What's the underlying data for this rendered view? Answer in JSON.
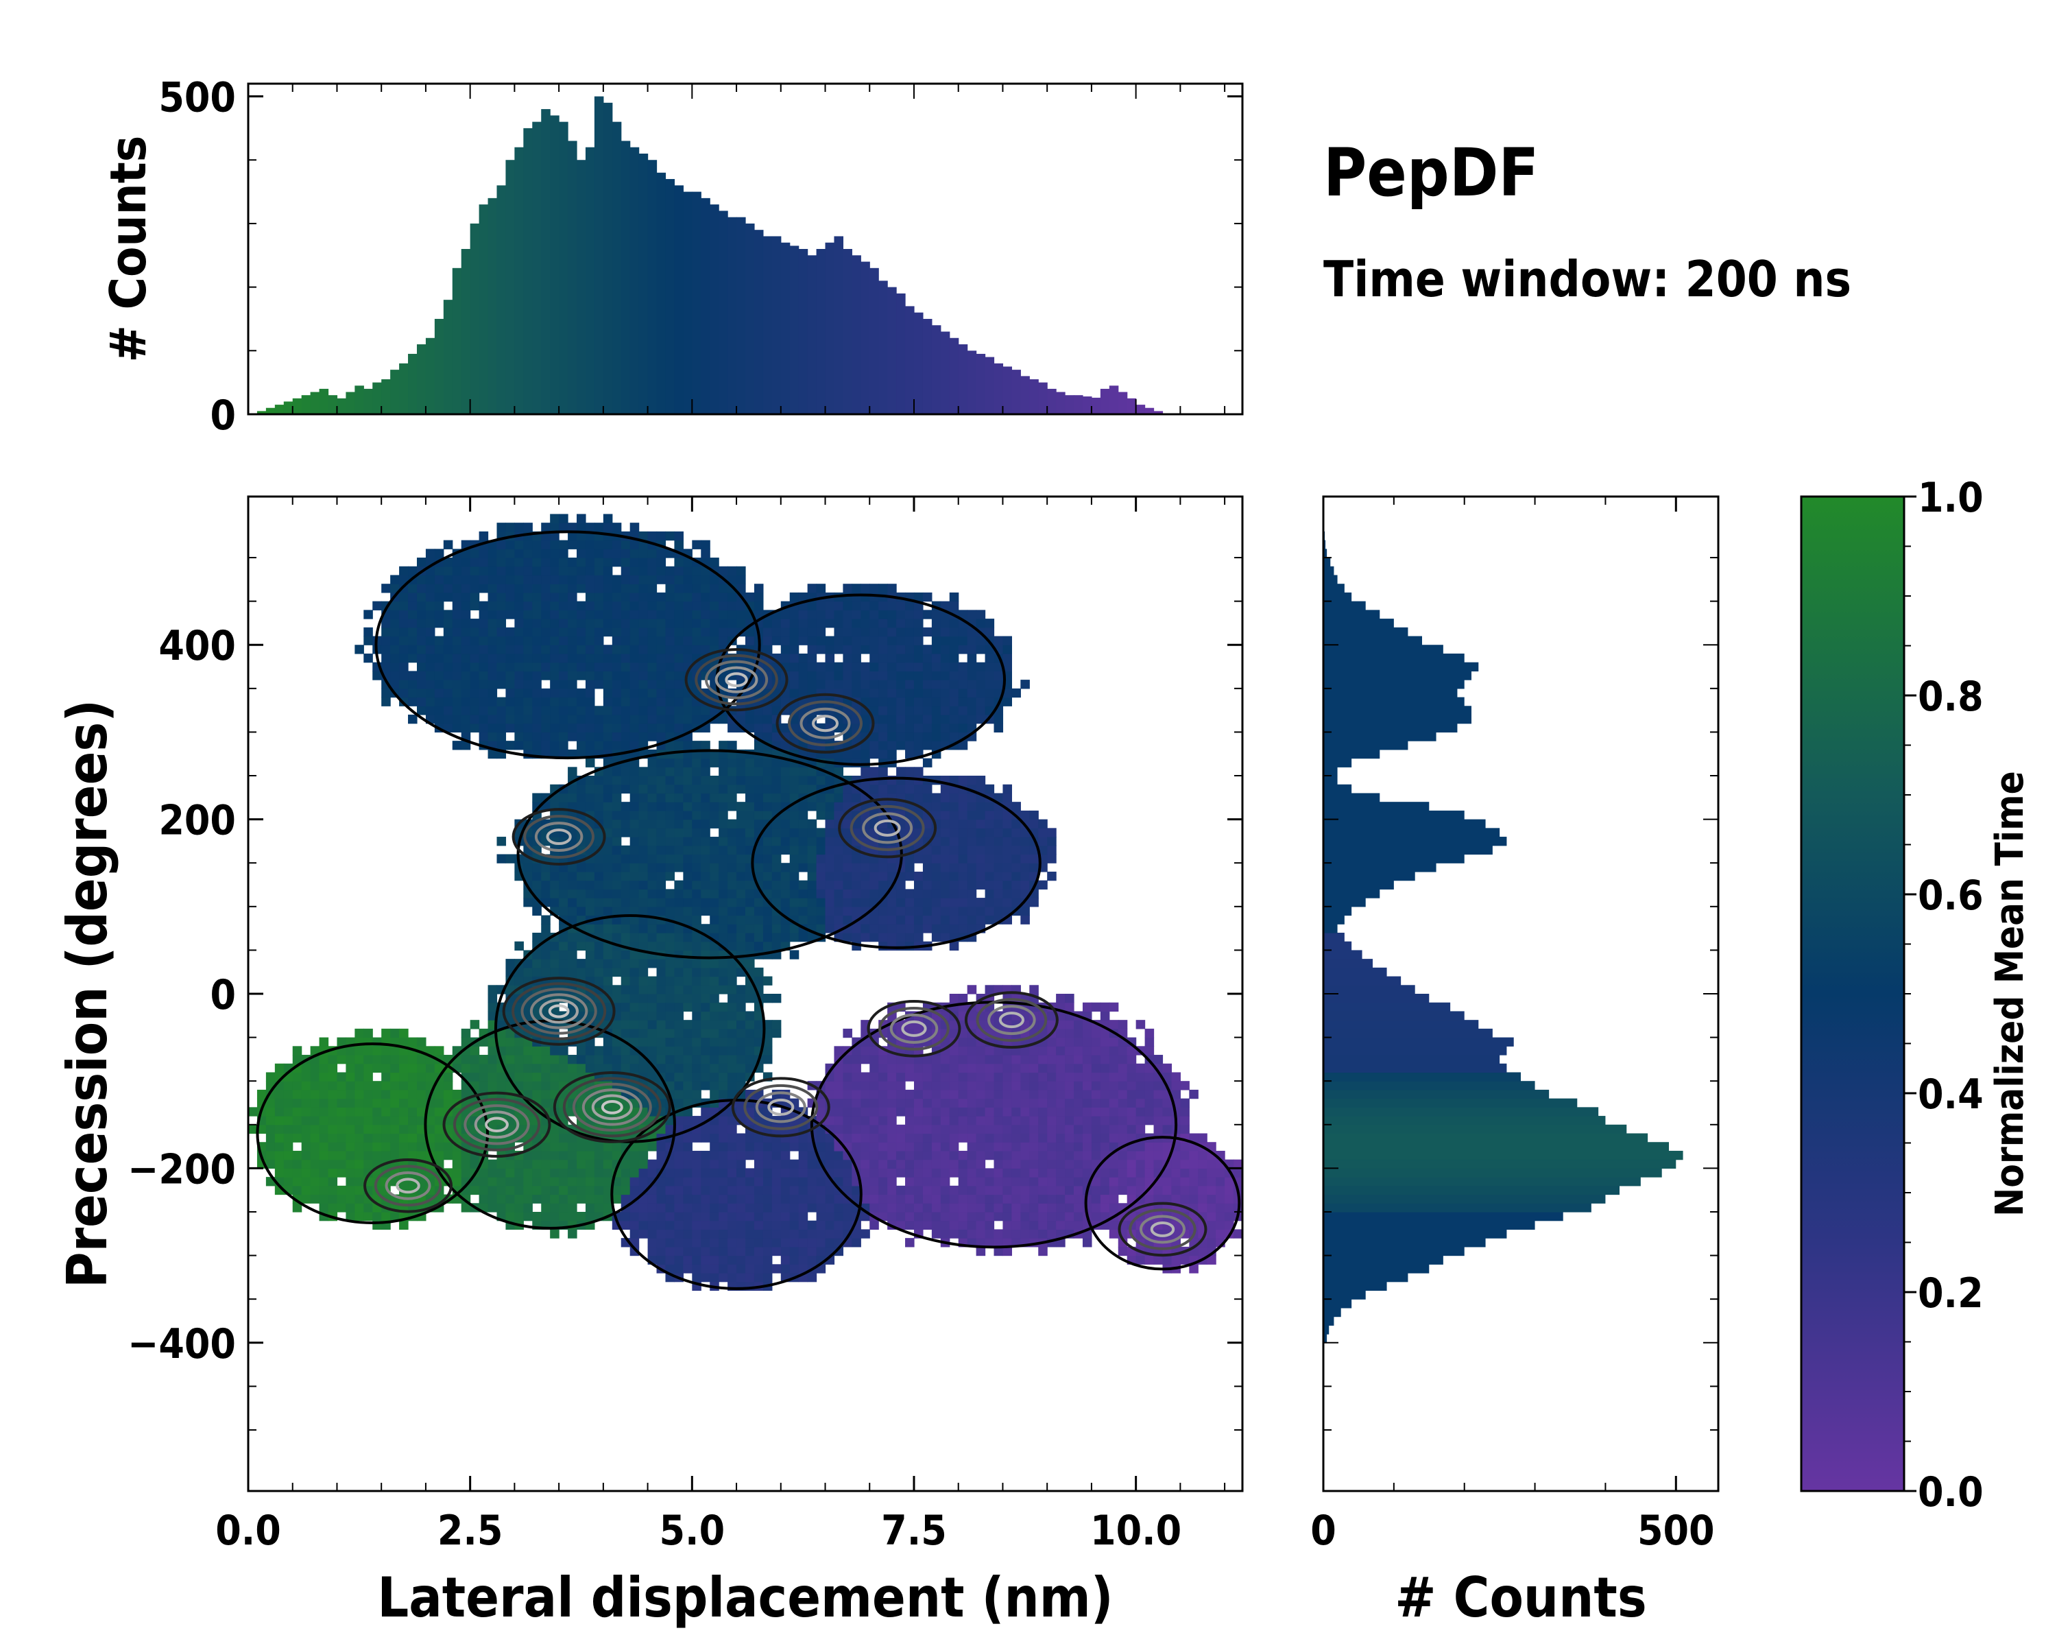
{
  "title": "PepDF",
  "subtitle": "Time window: 200 ns",
  "colors": {
    "green": "#228a2a",
    "teal": "#1a5a5e",
    "navy": "#063a6a",
    "indigo": "#2e3585",
    "purple": "#6635a2"
  },
  "chart_data": [
    {
      "type": "bar",
      "name": "x-marginal-histogram",
      "ylabel": "# Counts",
      "xlim": [
        0,
        11.2
      ],
      "ylim": [
        0,
        520
      ],
      "yticks": [
        0,
        500
      ],
      "ytick_labels": [
        "0",
        "500"
      ],
      "bin_edges_start": 0.0,
      "bin_width": 0.1,
      "values": [
        0,
        5,
        10,
        15,
        20,
        25,
        30,
        35,
        40,
        30,
        25,
        35,
        45,
        40,
        50,
        55,
        70,
        80,
        95,
        110,
        120,
        150,
        180,
        230,
        260,
        300,
        330,
        340,
        360,
        400,
        420,
        450,
        460,
        480,
        470,
        460,
        430,
        400,
        420,
        500,
        490,
        460,
        430,
        420,
        410,
        400,
        380,
        370,
        360,
        350,
        350,
        340,
        330,
        320,
        310,
        310,
        300,
        290,
        280,
        280,
        270,
        265,
        260,
        250,
        260,
        270,
        280,
        260,
        250,
        240,
        230,
        210,
        200,
        190,
        170,
        160,
        150,
        140,
        130,
        120,
        110,
        100,
        95,
        90,
        80,
        75,
        70,
        60,
        55,
        50,
        40,
        35,
        30,
        30,
        28,
        26,
        40,
        45,
        35,
        25,
        15,
        10,
        5,
        0,
        0,
        0,
        0,
        0,
        0,
        0,
        0,
        0
      ]
    },
    {
      "type": "bar",
      "name": "y-marginal-histogram",
      "orientation": "horizontal",
      "xlabel": "# Counts",
      "xlim": [
        0,
        560
      ],
      "xticks": [
        0,
        500
      ],
      "xtick_labels": [
        "0",
        "500"
      ],
      "ylim": [
        -570,
        570
      ],
      "bin_edges_start": -400,
      "bin_width": 10,
      "values": [
        5,
        8,
        15,
        25,
        40,
        60,
        90,
        120,
        150,
        170,
        200,
        230,
        260,
        300,
        340,
        380,
        400,
        420,
        450,
        480,
        500,
        510,
        490,
        460,
        430,
        400,
        390,
        360,
        320,
        300,
        280,
        260,
        250,
        260,
        270,
        240,
        220,
        200,
        180,
        150,
        130,
        110,
        90,
        70,
        55,
        40,
        30,
        20,
        30,
        40,
        60,
        80,
        100,
        130,
        160,
        200,
        240,
        260,
        250,
        230,
        200,
        150,
        80,
        40,
        20,
        20,
        40,
        80,
        120,
        160,
        190,
        210,
        210,
        200,
        190,
        200,
        210,
        220,
        200,
        170,
        140,
        120,
        100,
        80,
        60,
        40,
        30,
        20,
        15,
        10,
        5,
        3,
        2,
        1,
        0,
        0,
        0
      ]
    },
    {
      "type": "heatmap",
      "name": "joint-density-map",
      "xlabel": "Lateral displacement (nm)",
      "ylabel": "Precession (degrees)",
      "xlim": [
        0,
        11.2
      ],
      "ylim": [
        -570,
        570
      ],
      "xticks": [
        0.0,
        2.5,
        5.0,
        7.5,
        10.0
      ],
      "xtick_labels": [
        "0.0",
        "2.5",
        "5.0",
        "7.5",
        "10.0"
      ],
      "yticks": [
        -400,
        -200,
        0,
        200,
        400
      ],
      "ytick_labels": [
        "−400",
        "−200",
        "0",
        "200",
        "400"
      ],
      "regions": [
        {
          "name": "left-green-lobe",
          "center": [
            1.4,
            -160
          ],
          "radius": [
            1.2,
            95
          ],
          "color_value": 0.95
        },
        {
          "name": "green-core",
          "center": [
            3.4,
            -150
          ],
          "radius": [
            1.3,
            110
          ],
          "color_value": 0.85
        },
        {
          "name": "central-core",
          "center": [
            4.3,
            -40
          ],
          "radius": [
            1.4,
            120
          ],
          "color_value": 0.6
        },
        {
          "name": "lower-indigo",
          "center": [
            5.5,
            -230
          ],
          "radius": [
            1.3,
            100
          ],
          "color_value": 0.3
        },
        {
          "name": "mid-teal-band",
          "center": [
            5.2,
            160
          ],
          "radius": [
            2.0,
            110
          ],
          "color_value": 0.55
        },
        {
          "name": "mid-right-indigo",
          "center": [
            7.3,
            150
          ],
          "radius": [
            1.5,
            90
          ],
          "color_value": 0.35
        },
        {
          "name": "upper-navy",
          "center": [
            3.6,
            400
          ],
          "radius": [
            2.0,
            120
          ],
          "color_value": 0.5
        },
        {
          "name": "upper-right-navy",
          "center": [
            6.9,
            360
          ],
          "radius": [
            1.5,
            90
          ],
          "color_value": 0.45
        },
        {
          "name": "right-purple",
          "center": [
            8.4,
            -150
          ],
          "radius": [
            1.9,
            130
          ],
          "color_value": 0.1
        },
        {
          "name": "far-right-purple",
          "center": [
            10.3,
            -240
          ],
          "radius": [
            0.8,
            70
          ],
          "color_value": 0.05
        }
      ],
      "density_peaks": [
        {
          "x": 4.1,
          "y": -130,
          "level": 1.0
        },
        {
          "x": 3.5,
          "y": -20,
          "level": 0.9
        },
        {
          "x": 2.8,
          "y": -150,
          "level": 0.8
        },
        {
          "x": 5.5,
          "y": 360,
          "level": 0.7
        },
        {
          "x": 6.5,
          "y": 310,
          "level": 0.6
        },
        {
          "x": 7.2,
          "y": 190,
          "level": 0.6
        },
        {
          "x": 6.0,
          "y": -130,
          "level": 0.6
        },
        {
          "x": 7.5,
          "y": -40,
          "level": 0.5
        },
        {
          "x": 3.5,
          "y": 180,
          "level": 0.5
        },
        {
          "x": 8.6,
          "y": -30,
          "level": 0.5
        },
        {
          "x": 10.3,
          "y": -270,
          "level": 0.4
        },
        {
          "x": 1.8,
          "y": -220,
          "level": 0.4
        }
      ]
    },
    {
      "type": "colorbar",
      "name": "time-colorbar",
      "label": "Normalized Mean Time",
      "range": [
        0.0,
        1.0
      ],
      "ticks": [
        0.0,
        0.2,
        0.4,
        0.6,
        0.8,
        1.0
      ],
      "tick_labels": [
        "0.0",
        "0.2",
        "0.4",
        "0.6",
        "0.8",
        "1.0"
      ],
      "stops": [
        {
          "value": 0.0,
          "color": "#6635a2"
        },
        {
          "value": 0.25,
          "color": "#2e3585"
        },
        {
          "value": 0.5,
          "color": "#063a6a"
        },
        {
          "value": 0.7,
          "color": "#145a5a"
        },
        {
          "value": 1.0,
          "color": "#228a2a"
        }
      ]
    }
  ]
}
